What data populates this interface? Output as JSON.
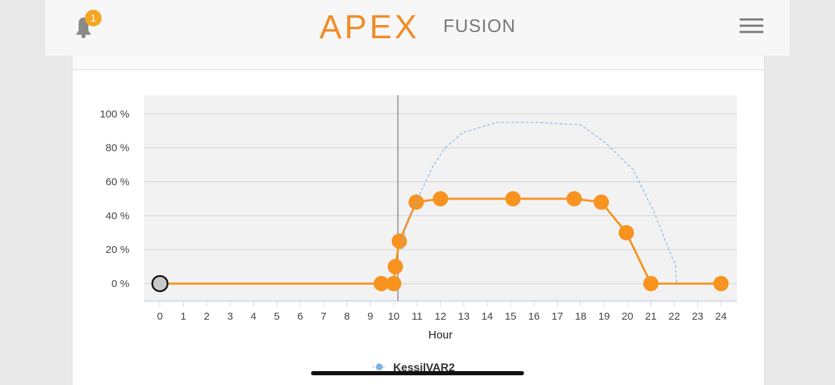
{
  "header": {
    "badge": "1",
    "logo": "APEX",
    "logo_suffix": "FUSION"
  },
  "chart_data": {
    "type": "line",
    "x_label": "Hour",
    "xlim": [
      -0.68,
      24.68
    ],
    "xticks": [
      0,
      1,
      2,
      3,
      4,
      5,
      6,
      7,
      8,
      9,
      10,
      11,
      12,
      13,
      14,
      15,
      16,
      17,
      18,
      19,
      20,
      21,
      22,
      23,
      24
    ],
    "ylim": [
      -10.2,
      111
    ],
    "yticks": [
      {
        "value": 0,
        "label": "0 %"
      },
      {
        "value": 20,
        "label": "20 %"
      },
      {
        "value": 40,
        "label": "40 %"
      },
      {
        "value": 60,
        "label": "60 %"
      },
      {
        "value": 80,
        "label": "80 %"
      },
      {
        "value": 100,
        "label": "100 %"
      }
    ],
    "grid": true,
    "cursor": 10.18,
    "series": [
      {
        "color": "#f7931e",
        "markers": true,
        "highlight": 0,
        "highlight_color": "#c8c8c8",
        "x": [
          0,
          9.47,
          10.0,
          10.07,
          10.24,
          10.96,
          12.0,
          15.1,
          17.72,
          18.88,
          19.95,
          21.0,
          24
        ],
        "values": [
          0,
          0,
          0,
          10,
          25,
          48,
          50,
          50,
          50,
          48,
          30,
          0,
          0
        ]
      },
      {
        "name": "KessilVAR2",
        "color": "#7fb2e5",
        "dashed": true,
        "x": [
          10.36,
          10.54,
          10.96,
          11.67,
          12.2,
          12.95,
          14.44,
          16.08,
          18.0,
          19.06,
          20.25,
          21.14,
          21.89,
          22.04,
          22.1
        ],
        "values": [
          20,
          36,
          48,
          69,
          80,
          89,
          95,
          95,
          93.5,
          83,
          67,
          42,
          16,
          12,
          0
        ]
      }
    ]
  }
}
